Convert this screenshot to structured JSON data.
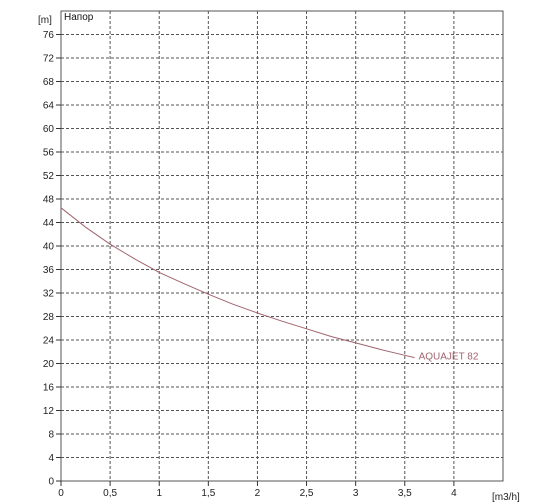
{
  "chart_data": {
    "type": "line",
    "title": "Напор",
    "ylabel": "[m]",
    "xlabel": "[m3/h]",
    "xlim": [
      0,
      4.5
    ],
    "ylim": [
      0,
      80
    ],
    "x_ticks": [
      0,
      0.5,
      1,
      1.5,
      2,
      2.5,
      3,
      3.5,
      4
    ],
    "x_tick_labels": [
      "0",
      "0,5",
      "1",
      "1,5",
      "2",
      "2,5",
      "3",
      "3,5",
      "4"
    ],
    "y_ticks": [
      0,
      4,
      8,
      12,
      16,
      20,
      24,
      28,
      32,
      36,
      40,
      44,
      48,
      52,
      56,
      60,
      64,
      68,
      72,
      76
    ],
    "y_tick_labels": [
      "0",
      "4",
      "8",
      "12",
      "16",
      "20",
      "24",
      "28",
      "32",
      "36",
      "40",
      "44",
      "48",
      "52",
      "56",
      "60",
      "64",
      "68",
      "72",
      "76"
    ],
    "grid": true,
    "series": [
      {
        "name": "AQUAJET 82",
        "color": "#a0646e",
        "x": [
          0,
          0.25,
          0.5,
          0.75,
          1,
          1.25,
          1.5,
          1.75,
          2,
          2.25,
          2.5,
          2.75,
          3,
          3.25,
          3.5,
          3.6
        ],
        "y": [
          46.5,
          43.2,
          40.3,
          37.8,
          35.5,
          33.6,
          31.8,
          30.1,
          28.6,
          27.2,
          25.9,
          24.6,
          23.5,
          22.4,
          21.4,
          21.0
        ]
      }
    ]
  }
}
